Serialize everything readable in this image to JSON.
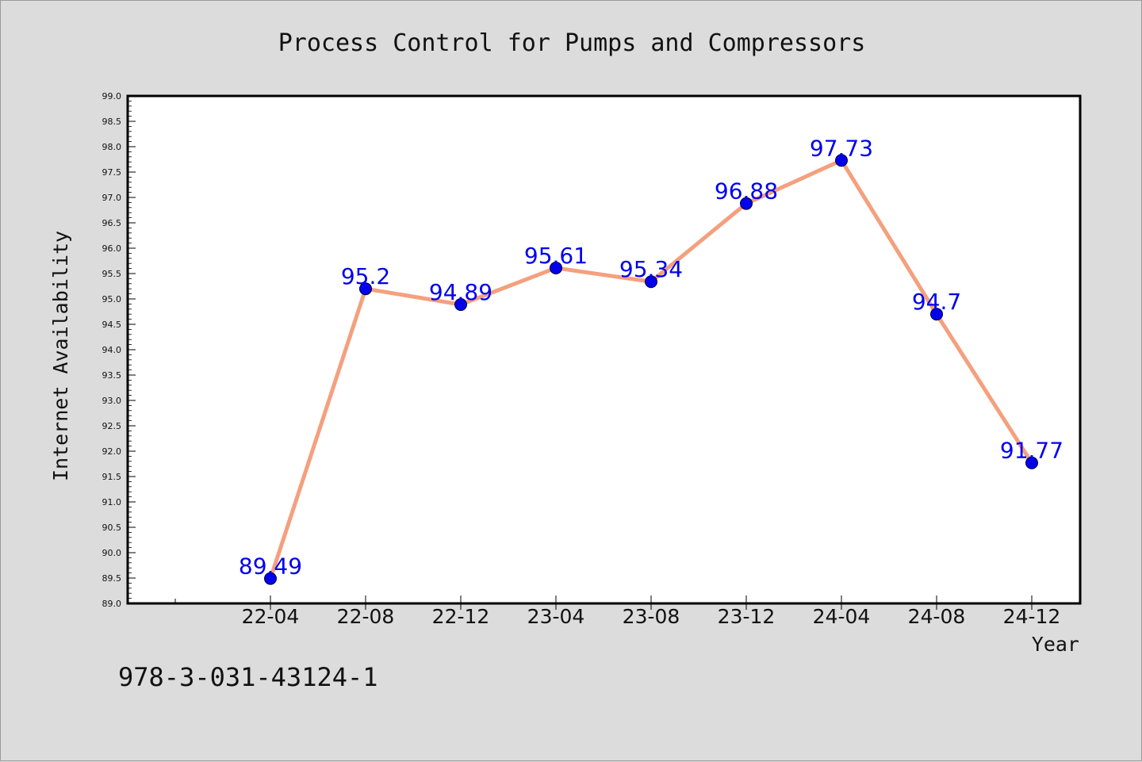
{
  "chart_data": {
    "type": "line",
    "title": "Process Control for Pumps and Compressors",
    "xlabel": "Year",
    "ylabel": "Internet Availability",
    "categories": [
      "22-04",
      "22-08",
      "22-12",
      "23-04",
      "23-08",
      "23-12",
      "24-04",
      "24-08",
      "24-12"
    ],
    "series": [
      {
        "values": [
          89.49,
          95.2,
          94.89,
          95.61,
          95.34,
          96.88,
          97.73,
          94.7,
          91.77
        ],
        "data_labels": [
          "89.49",
          "95.2",
          "94.89",
          "95.61",
          "95.34",
          "96.88",
          "97.73",
          "94.7",
          "91.77"
        ],
        "line_color": "#f4a07e",
        "marker_color": "#0000ee"
      }
    ],
    "ylim": [
      89.0,
      99.0
    ],
    "yticks": [
      "89.0",
      "89.5",
      "90.0",
      "90.5",
      "91.0",
      "91.5",
      "92.0",
      "92.5",
      "93.0",
      "93.5",
      "94.0",
      "94.5",
      "95.0",
      "95.5",
      "96.0",
      "96.5",
      "97.0",
      "97.5",
      "98.0",
      "98.5",
      "99.0"
    ],
    "grid": false,
    "label_color": "#0000ee"
  },
  "footer": {
    "text": "978-3-031-43124-1"
  },
  "colors": {
    "background": "#dcdcdc",
    "plot_background": "#ffffff"
  }
}
